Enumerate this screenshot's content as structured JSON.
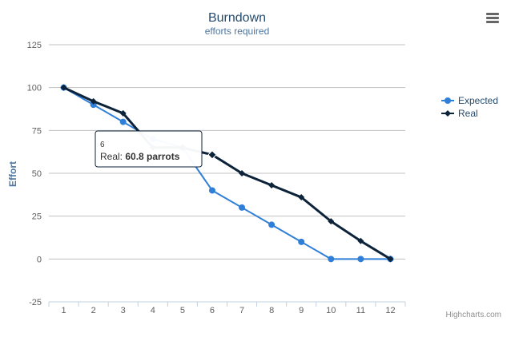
{
  "chart_data": {
    "type": "line",
    "title": "Burndown",
    "subtitle": "efforts required",
    "xlabel": "",
    "ylabel": "Effort",
    "categories": [
      "1",
      "2",
      "3",
      "4",
      "5",
      "6",
      "7",
      "8",
      "9",
      "10",
      "11",
      "12"
    ],
    "ylim": [
      -25,
      125
    ],
    "yticks": [
      -25,
      0,
      25,
      50,
      75,
      100,
      125
    ],
    "grid": true,
    "legend_position": "right",
    "series": [
      {
        "name": "Expected",
        "color": "#2f7ed8",
        "marker": "circle",
        "values": [
          100,
          90,
          80,
          70,
          65,
          40,
          30,
          20,
          10,
          0,
          0,
          0
        ]
      },
      {
        "name": "Real",
        "color": "#0d233a",
        "marker": "diamond",
        "values": [
          100,
          92,
          85,
          65,
          65,
          60.8,
          50,
          43,
          36,
          22,
          10.5,
          0
        ]
      }
    ],
    "tooltip": {
      "category": "6",
      "series_label": "Real: ",
      "value_text": "60.8 parrots"
    },
    "credits": "Highcharts.com"
  },
  "toolbar": {
    "menu_icon": "hamburger-menu-icon"
  }
}
